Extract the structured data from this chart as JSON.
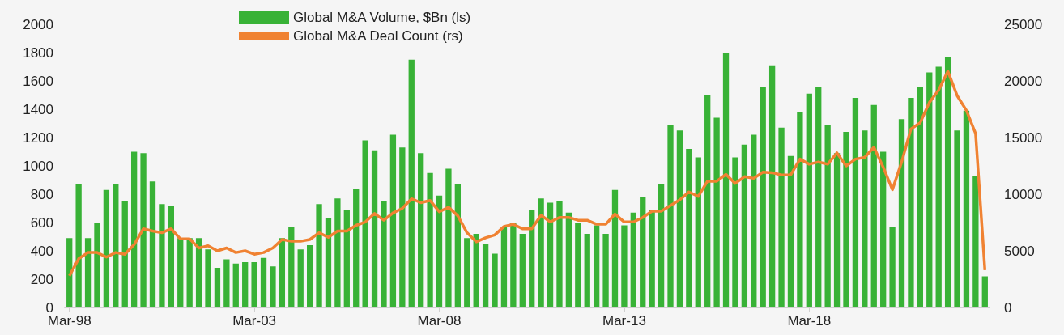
{
  "chart_data": {
    "type": "bar",
    "categories": [
      "Mar-98",
      null,
      null,
      null,
      null,
      null,
      null,
      null,
      null,
      null,
      null,
      null,
      null,
      null,
      null,
      null,
      null,
      null,
      null,
      null,
      "Mar-03",
      null,
      null,
      null,
      null,
      null,
      null,
      null,
      null,
      null,
      null,
      null,
      null,
      null,
      null,
      null,
      null,
      null,
      null,
      null,
      "Mar-08",
      null,
      null,
      null,
      null,
      null,
      null,
      null,
      null,
      null,
      null,
      null,
      null,
      null,
      null,
      null,
      null,
      null,
      null,
      null,
      "Mar-13",
      null,
      null,
      null,
      null,
      null,
      null,
      null,
      null,
      null,
      null,
      null,
      null,
      null,
      null,
      null,
      null,
      null,
      null,
      null,
      "Mar-18",
      null,
      null,
      null,
      null,
      null,
      null,
      null,
      null,
      null,
      null,
      null,
      null,
      null,
      null,
      null,
      null,
      null,
      null,
      null
    ],
    "series": [
      {
        "name": "Global M&A Volume, $Bn (ls)",
        "color": "#38b236",
        "values": [
          490,
          870,
          490,
          600,
          830,
          870,
          750,
          1100,
          1090,
          890,
          730,
          720,
          490,
          490,
          490,
          410,
          280,
          340,
          310,
          320,
          320,
          350,
          290,
          490,
          570,
          410,
          440,
          730,
          630,
          770,
          690,
          840,
          1180,
          1110,
          750,
          1220,
          1130,
          1750,
          1090,
          950,
          790,
          980,
          870,
          490,
          520,
          450,
          380,
          570,
          600,
          520,
          690,
          770,
          740,
          750,
          670,
          600,
          520,
          580,
          520,
          830,
          580,
          670,
          780,
          690,
          870,
          1290,
          1250,
          1120,
          1060,
          1500,
          1340,
          1800,
          1060,
          1150,
          1220,
          1560,
          1710,
          1270,
          1070,
          1380,
          1510,
          1560,
          1290,
          1090,
          1240,
          1480,
          1250,
          1430,
          1100,
          570,
          1330,
          1480,
          1560,
          1660,
          1700,
          1770,
          1250,
          1390,
          930,
          220
        ]
      },
      {
        "name": "Global M&A Deal Count (rs)",
        "type": "line",
        "axis": "y2",
        "color": "#f08232",
        "values": [
          2800,
          4300,
          4850,
          4850,
          4450,
          4850,
          4700,
          5550,
          6950,
          6750,
          6600,
          6950,
          6050,
          6050,
          5250,
          5450,
          5000,
          5250,
          4850,
          5000,
          4700,
          4850,
          5250,
          6000,
          5850,
          5850,
          6000,
          6600,
          6200,
          6750,
          6750,
          7250,
          7550,
          8300,
          7700,
          8350,
          8750,
          9600,
          9250,
          9450,
          8450,
          8850,
          8100,
          6600,
          5800,
          6150,
          6400,
          7150,
          7350,
          6950,
          6950,
          8150,
          7550,
          7950,
          7950,
          7700,
          7700,
          7350,
          7350,
          8250,
          7550,
          7550,
          7950,
          8500,
          8500,
          9000,
          9500,
          10200,
          9800,
          11150,
          11150,
          11750,
          10950,
          11550,
          11400,
          11950,
          11900,
          11700,
          11700,
          13100,
          12650,
          12850,
          12650,
          13650,
          12500,
          13100,
          13250,
          14150,
          12400,
          10400,
          12850,
          15750,
          16300,
          18100,
          19200,
          20850,
          18700,
          17400,
          15350,
          3300
        ]
      }
    ],
    "ylim": [
      0,
      2000
    ],
    "yticks": [
      0,
      200,
      400,
      600,
      800,
      1000,
      1200,
      1400,
      1600,
      1800,
      2000
    ],
    "y2lim": [
      0,
      25000
    ],
    "y2ticks": [
      0,
      5000,
      10000,
      15000,
      20000,
      25000
    ],
    "legend": "top",
    "grid": false,
    "marker": "none"
  }
}
